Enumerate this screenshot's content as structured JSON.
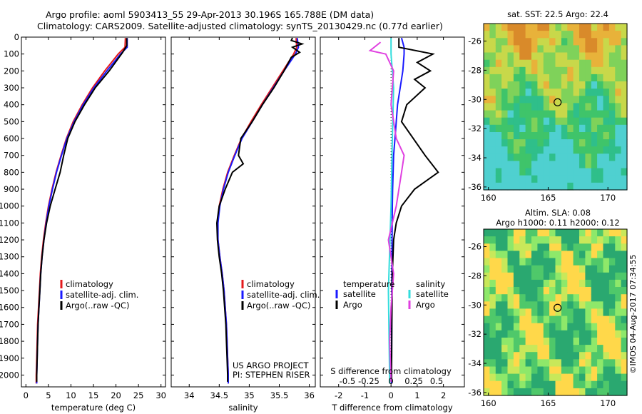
{
  "header": {
    "line1": "Argo profile: aoml 5903413_55 29-Apr-2013 30.196S 165.788E (DM data)",
    "line2": "Climatology: CARS2009. Satellite-adjusted climatology: synTS_20130429.nc (0.77d earlier)"
  },
  "colors": {
    "climatology": "#e41a1c",
    "satellite": "#1a1aff",
    "argo": "#000000",
    "s_satellite": "#33dddd",
    "s_argo": "#e040e0"
  },
  "chart_data": [
    {
      "id": "temperature",
      "type": "line",
      "xlabel": "temperature (deg C)",
      "ylabel": "",
      "xlim": [
        -1,
        31
      ],
      "ylim": [
        2070,
        0
      ],
      "xticks": [
        0,
        5,
        10,
        15,
        20,
        25,
        30
      ],
      "yticks": [
        0,
        100,
        200,
        300,
        400,
        500,
        600,
        700,
        800,
        900,
        1000,
        1100,
        1200,
        1300,
        1400,
        1500,
        1600,
        1700,
        1800,
        1900,
        2000
      ],
      "legend": [
        "climatology",
        "satellite-adj. clim.",
        "Argo(..raw -QC)"
      ],
      "series": [
        {
          "name": "climatology",
          "points": [
            [
              22.1,
              5
            ],
            [
              22.0,
              60
            ],
            [
              20.5,
              100
            ],
            [
              17.5,
              200
            ],
            [
              14.8,
              300
            ],
            [
              12.5,
              400
            ],
            [
              10.5,
              500
            ],
            [
              9.0,
              600
            ],
            [
              7.8,
              700
            ],
            [
              6.7,
              800
            ],
            [
              5.8,
              900
            ],
            [
              5.0,
              1000
            ],
            [
              4.4,
              1100
            ],
            [
              3.9,
              1200
            ],
            [
              3.5,
              1300
            ],
            [
              3.2,
              1400
            ],
            [
              3.0,
              1500
            ],
            [
              2.8,
              1600
            ],
            [
              2.6,
              1700
            ],
            [
              2.5,
              1800
            ],
            [
              2.4,
              1900
            ],
            [
              2.3,
              2000
            ],
            [
              2.3,
              2050
            ]
          ]
        },
        {
          "name": "satellite-adj. clim.",
          "points": [
            [
              22.5,
              5
            ],
            [
              22.5,
              60
            ],
            [
              21.0,
              100
            ],
            [
              18.0,
              200
            ],
            [
              15.1,
              300
            ],
            [
              12.7,
              400
            ],
            [
              10.7,
              500
            ],
            [
              9.1,
              600
            ],
            [
              7.9,
              700
            ],
            [
              6.8,
              800
            ],
            [
              5.9,
              900
            ],
            [
              5.1,
              1000
            ],
            [
              4.5,
              1100
            ],
            [
              4.0,
              1200
            ],
            [
              3.6,
              1300
            ],
            [
              3.3,
              1400
            ],
            [
              3.1,
              1500
            ],
            [
              2.9,
              1600
            ],
            [
              2.7,
              1700
            ],
            [
              2.6,
              1800
            ],
            [
              2.5,
              1900
            ],
            [
              2.4,
              2000
            ],
            [
              2.4,
              2050
            ]
          ]
        },
        {
          "name": "Argo(..raw -QC)",
          "points": [
            [
              22.4,
              5
            ],
            [
              22.4,
              50
            ],
            [
              21.5,
              90
            ],
            [
              18.5,
              200
            ],
            [
              15.4,
              300
            ],
            [
              13.0,
              400
            ],
            [
              10.9,
              500
            ],
            [
              9.3,
              600
            ],
            [
              8.4,
              700
            ],
            [
              7.6,
              800
            ],
            [
              6.5,
              900
            ],
            [
              5.4,
              1000
            ],
            [
              4.6,
              1100
            ],
            [
              4.0,
              1200
            ],
            [
              3.6,
              1300
            ],
            [
              3.3,
              1400
            ],
            [
              3.1,
              1500
            ],
            [
              2.9,
              1600
            ],
            [
              2.7,
              1700
            ],
            [
              2.6,
              1800
            ],
            [
              2.5,
              1900
            ],
            [
              2.4,
              2000
            ],
            [
              2.4,
              2040
            ]
          ]
        }
      ]
    },
    {
      "id": "salinity",
      "type": "line",
      "xlabel": "salinity",
      "xlim": [
        33.7,
        36.1
      ],
      "ylim": [
        2070,
        0
      ],
      "xticks": [
        34,
        34.5,
        35,
        35.5,
        36
      ],
      "legend": [
        "climatology",
        "satellite-adj. clim.",
        "Argo(..raw -QC)"
      ],
      "annotation": [
        "US ARGO PROJECT",
        "PI: STEPHEN RISER"
      ],
      "series": [
        {
          "name": "climatology",
          "points": [
            [
              35.78,
              5
            ],
            [
              35.79,
              60
            ],
            [
              35.74,
              100
            ],
            [
              35.56,
              200
            ],
            [
              35.38,
              300
            ],
            [
              35.2,
              400
            ],
            [
              35.03,
              500
            ],
            [
              34.87,
              600
            ],
            [
              34.75,
              700
            ],
            [
              34.64,
              800
            ],
            [
              34.56,
              900
            ],
            [
              34.5,
              1000
            ],
            [
              34.47,
              1100
            ],
            [
              34.48,
              1200
            ],
            [
              34.51,
              1300
            ],
            [
              34.55,
              1400
            ],
            [
              34.58,
              1500
            ],
            [
              34.6,
              1600
            ],
            [
              34.62,
              1700
            ],
            [
              34.63,
              1800
            ],
            [
              34.64,
              1900
            ],
            [
              34.65,
              2000
            ],
            [
              34.65,
              2050
            ]
          ]
        },
        {
          "name": "satellite-adj. clim.",
          "points": [
            [
              35.8,
              5
            ],
            [
              35.82,
              60
            ],
            [
              35.77,
              100
            ],
            [
              35.58,
              200
            ],
            [
              35.4,
              300
            ],
            [
              35.22,
              400
            ],
            [
              35.05,
              500
            ],
            [
              34.88,
              600
            ],
            [
              34.76,
              700
            ],
            [
              34.65,
              800
            ],
            [
              34.57,
              900
            ],
            [
              34.51,
              1000
            ],
            [
              34.48,
              1100
            ],
            [
              34.48,
              1200
            ],
            [
              34.51,
              1300
            ],
            [
              34.55,
              1400
            ],
            [
              34.58,
              1500
            ],
            [
              34.6,
              1600
            ],
            [
              34.62,
              1700
            ],
            [
              34.63,
              1800
            ],
            [
              34.64,
              1900
            ],
            [
              34.65,
              2000
            ],
            [
              34.65,
              2050
            ]
          ]
        },
        {
          "name": "Argo(..raw -QC)",
          "points": [
            [
              35.72,
              5
            ],
            [
              35.7,
              20
            ],
            [
              35.88,
              40
            ],
            [
              35.72,
              60
            ],
            [
              35.84,
              90
            ],
            [
              35.7,
              120
            ],
            [
              35.58,
              200
            ],
            [
              35.41,
              300
            ],
            [
              35.22,
              400
            ],
            [
              35.05,
              500
            ],
            [
              34.86,
              600
            ],
            [
              34.82,
              700
            ],
            [
              34.9,
              750
            ],
            [
              34.72,
              800
            ],
            [
              34.6,
              900
            ],
            [
              34.5,
              1000
            ],
            [
              34.46,
              1100
            ],
            [
              34.47,
              1200
            ],
            [
              34.5,
              1300
            ],
            [
              34.54,
              1400
            ],
            [
              34.57,
              1500
            ],
            [
              34.59,
              1600
            ],
            [
              34.61,
              1700
            ],
            [
              34.62,
              1800
            ],
            [
              34.63,
              1900
            ],
            [
              34.64,
              2000
            ],
            [
              34.64,
              2040
            ]
          ]
        }
      ]
    },
    {
      "id": "differences",
      "type": "line",
      "xlabel": "T difference from climatology",
      "x2label": "S difference from climatology",
      "xlim": [
        -2.7,
        2.8
      ],
      "ylim": [
        2070,
        0
      ],
      "xticks": [
        -2,
        -1,
        0,
        1,
        2
      ],
      "x2ticks": [
        "-0.5",
        "-0.25",
        "0",
        "0.25",
        "0.5"
      ],
      "legend_left": {
        "title": "temperature",
        "items": [
          "satellite",
          "Argo"
        ]
      },
      "legend_right": {
        "title": "salinity",
        "items": [
          "satellite",
          "Argo"
        ]
      },
      "series": [
        {
          "name": "temperature satellite",
          "points": [
            [
              0.4,
              5
            ],
            [
              0.5,
              60
            ],
            [
              0.5,
              100
            ],
            [
              0.45,
              200
            ],
            [
              0.35,
              300
            ],
            [
              0.25,
              400
            ],
            [
              0.2,
              500
            ],
            [
              0.15,
              600
            ],
            [
              0.1,
              700
            ],
            [
              0.08,
              800
            ],
            [
              0.06,
              900
            ],
            [
              0.05,
              1000
            ],
            [
              0.04,
              1200
            ],
            [
              0.03,
              1500
            ],
            [
              0.02,
              2050
            ]
          ]
        },
        {
          "name": "temperature Argo",
          "points": [
            [
              0.3,
              5
            ],
            [
              0.3,
              60
            ],
            [
              1.6,
              100
            ],
            [
              1.0,
              150
            ],
            [
              1.5,
              200
            ],
            [
              0.9,
              250
            ],
            [
              1.3,
              300
            ],
            [
              0.6,
              400
            ],
            [
              0.4,
              500
            ],
            [
              1.3,
              700
            ],
            [
              1.8,
              800
            ],
            [
              0.9,
              900
            ],
            [
              0.4,
              1000
            ],
            [
              0.2,
              1100
            ],
            [
              0.1,
              1200
            ],
            [
              0.05,
              1400
            ],
            [
              0.03,
              1700
            ],
            [
              0.02,
              2040
            ]
          ]
        },
        {
          "name": "salinity satellite",
          "points": [
            [
              0.0,
              5
            ],
            [
              0.0,
              100
            ],
            [
              0.1,
              300
            ],
            [
              0.05,
              600
            ],
            [
              0.0,
              1000
            ],
            [
              -0.1,
              1500
            ],
            [
              -0.05,
              2050
            ]
          ]
        },
        {
          "name": "salinity Argo",
          "points": [
            [
              -0.4,
              30
            ],
            [
              -0.8,
              80
            ],
            [
              -0.2,
              100
            ],
            [
              0.1,
              200
            ],
            [
              0.0,
              400
            ],
            [
              0.2,
              600
            ],
            [
              0.5,
              700
            ],
            [
              0.4,
              800
            ],
            [
              0.2,
              1000
            ],
            [
              -0.1,
              1200
            ],
            [
              0.1,
              1400
            ],
            [
              0.0,
              1600
            ],
            [
              -0.05,
              1800
            ],
            [
              0.0,
              2040
            ]
          ]
        }
      ]
    },
    {
      "id": "sst_map",
      "type": "heatmap",
      "title": "sat. SST: 22.5 Argo: 22.4",
      "xticks": [
        160,
        165,
        170
      ],
      "yticks": [
        -26,
        -28,
        -30,
        -32,
        -34,
        -36
      ],
      "xlim": [
        159.6,
        171.6
      ],
      "ylim": [
        -36.2,
        -24.8
      ],
      "marker": {
        "lon": 165.788,
        "lat": -30.196
      }
    },
    {
      "id": "sla_map",
      "type": "heatmap",
      "title": [
        "Altim. SLA: 0.08",
        "Argo h1000: 0.11 h2000: 0.12"
      ],
      "xticks": [
        160,
        165,
        170
      ],
      "yticks": [
        -26,
        -28,
        -30,
        -32,
        -34,
        -36
      ],
      "xlim": [
        159.6,
        171.6
      ],
      "ylim": [
        -36.2,
        -24.8
      ],
      "marker": {
        "lon": 165.788,
        "lat": -30.196
      }
    }
  ],
  "credit": "©IMOS 04-Aug-2017 07:34:55"
}
